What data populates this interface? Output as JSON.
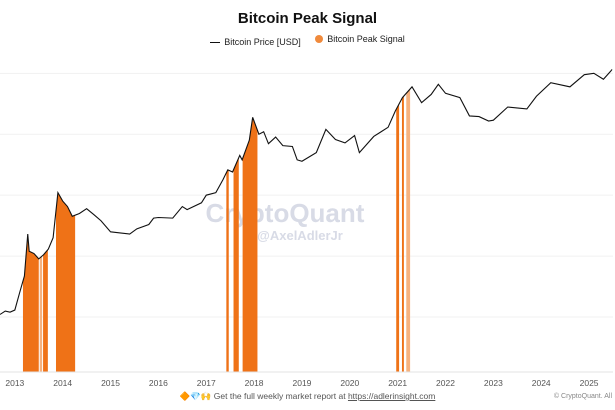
{
  "chart_data": {
    "type": "line",
    "title": "Bitcoin Peak Signal",
    "legend": [
      {
        "name": "Bitcoin Price [USD]",
        "style": "line",
        "color": "#111111"
      },
      {
        "name": "Bitcoin Peak Signal",
        "style": "dot",
        "color": "#f08a3c"
      }
    ],
    "legend_placement": "top-center",
    "xlabel": "",
    "ylabel": "",
    "x_ticks": [
      "2013",
      "2014",
      "2015",
      "2016",
      "2017",
      "2018",
      "2019",
      "2020",
      "2021",
      "2022",
      "2023",
      "2024",
      "2025"
    ],
    "xlim": [
      2012.69,
      2025.5
    ],
    "y_scale": "log",
    "ylim": [
      1.25,
      200000
    ],
    "grid": "horizontal",
    "series": [
      {
        "name": "Bitcoin Price [USD]",
        "color": "#111111",
        "points": [
          [
            2012.69,
            11
          ],
          [
            2012.8,
            12.5
          ],
          [
            2012.9,
            12
          ],
          [
            2013.0,
            13
          ],
          [
            2013.1,
            25
          ],
          [
            2013.2,
            47
          ],
          [
            2013.27,
            230
          ],
          [
            2013.3,
            120
          ],
          [
            2013.4,
            110
          ],
          [
            2013.5,
            90
          ],
          [
            2013.6,
            105
          ],
          [
            2013.7,
            130
          ],
          [
            2013.8,
            200
          ],
          [
            2013.9,
            1100
          ],
          [
            2014.0,
            800
          ],
          [
            2014.1,
            650
          ],
          [
            2014.2,
            450
          ],
          [
            2014.35,
            500
          ],
          [
            2014.5,
            600
          ],
          [
            2014.65,
            480
          ],
          [
            2014.8,
            380
          ],
          [
            2015.0,
            250
          ],
          [
            2015.2,
            240
          ],
          [
            2015.4,
            230
          ],
          [
            2015.55,
            280
          ],
          [
            2015.8,
            330
          ],
          [
            2015.9,
            420
          ],
          [
            2016.0,
            430
          ],
          [
            2016.3,
            420
          ],
          [
            2016.5,
            650
          ],
          [
            2016.6,
            580
          ],
          [
            2016.9,
            750
          ],
          [
            2017.0,
            1000
          ],
          [
            2017.2,
            1100
          ],
          [
            2017.35,
            1800
          ],
          [
            2017.45,
            2600
          ],
          [
            2017.55,
            2400
          ],
          [
            2017.7,
            4500
          ],
          [
            2017.75,
            3800
          ],
          [
            2017.9,
            8000
          ],
          [
            2017.97,
            19000
          ],
          [
            2018.1,
            10000
          ],
          [
            2018.2,
            11000
          ],
          [
            2018.3,
            7000
          ],
          [
            2018.45,
            9000
          ],
          [
            2018.6,
            6500
          ],
          [
            2018.8,
            6300
          ],
          [
            2018.9,
            3800
          ],
          [
            2019.0,
            3600
          ],
          [
            2019.3,
            5000
          ],
          [
            2019.5,
            12000
          ],
          [
            2019.7,
            8200
          ],
          [
            2019.9,
            7200
          ],
          [
            2020.1,
            9500
          ],
          [
            2020.2,
            5000
          ],
          [
            2020.5,
            9200
          ],
          [
            2020.8,
            13000
          ],
          [
            2020.95,
            24000
          ],
          [
            2021.1,
            40000
          ],
          [
            2021.3,
            60000
          ],
          [
            2021.5,
            33000
          ],
          [
            2021.7,
            45000
          ],
          [
            2021.85,
            66000
          ],
          [
            2022.0,
            47000
          ],
          [
            2022.3,
            40000
          ],
          [
            2022.5,
            20000
          ],
          [
            2022.7,
            19500
          ],
          [
            2022.9,
            16500
          ],
          [
            2023.0,
            17000
          ],
          [
            2023.3,
            28000
          ],
          [
            2023.7,
            26000
          ],
          [
            2023.9,
            42000
          ],
          [
            2024.2,
            70000
          ],
          [
            2024.6,
            60000
          ],
          [
            2024.9,
            95000
          ],
          [
            2025.1,
            100000
          ],
          [
            2025.3,
            80000
          ],
          [
            2025.45,
            108000
          ],
          [
            2025.48,
            116000
          ]
        ]
      }
    ],
    "signal_periods": [
      {
        "start": 2013.17,
        "end": 2013.5,
        "intensity": "strong"
      },
      {
        "start": 2013.52,
        "end": 2013.57,
        "intensity": "light"
      },
      {
        "start": 2013.59,
        "end": 2013.69,
        "intensity": "strong"
      },
      {
        "start": 2013.86,
        "end": 2014.26,
        "intensity": "strong"
      },
      {
        "start": 2017.42,
        "end": 2017.47,
        "intensity": "strong"
      },
      {
        "start": 2017.57,
        "end": 2017.68,
        "intensity": "strong"
      },
      {
        "start": 2017.76,
        "end": 2018.07,
        "intensity": "strong"
      },
      {
        "start": 2020.97,
        "end": 2021.03,
        "intensity": "strong"
      },
      {
        "start": 2021.09,
        "end": 2021.13,
        "intensity": "strong"
      },
      {
        "start": 2021.18,
        "end": 2021.26,
        "intensity": "light"
      }
    ],
    "colors": {
      "strong": "#ef7217",
      "light": "#f6b27f"
    }
  },
  "watermark": {
    "brand": "CryptoQuant",
    "handle": "@AxelAdlerJr"
  },
  "footer": {
    "emoji": "🔶💎🙌",
    "text": "Get the full weekly market report at",
    "link": "https://adlerinsight.com"
  },
  "credit": "© CryptoQuant. All"
}
